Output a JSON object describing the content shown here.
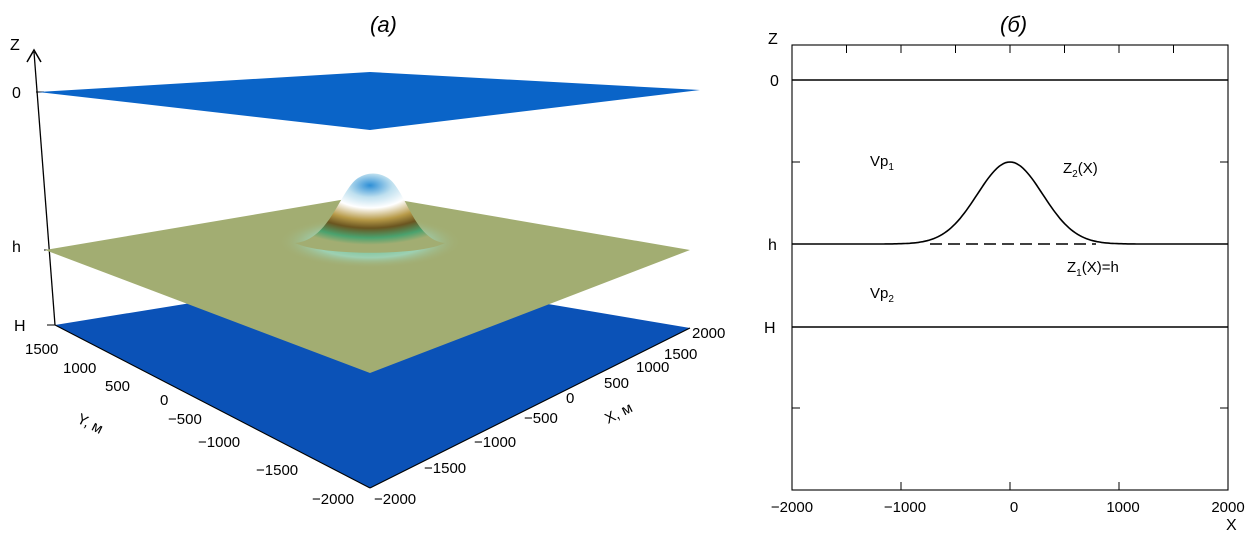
{
  "panel_a": {
    "label": "(а)",
    "z_axis_label": "Z",
    "level_labels": {
      "top": "0",
      "middle": "h",
      "bottom": "H"
    },
    "y_axis": {
      "label": "Y, м",
      "ticks": [
        "1500",
        "1000",
        "500",
        "0",
        "−500",
        "−1000",
        "−1500",
        "−2000"
      ]
    },
    "x_axis": {
      "label": "X, м",
      "ticks": [
        "2000",
        "1500",
        "1000",
        "500",
        "0",
        "−500",
        "−1000",
        "−1500",
        "−2000"
      ]
    },
    "colors": {
      "top_plane": "#0a64c8",
      "middle_plane": "#a2ad72",
      "bottom_plane": "#0b52b7"
    }
  },
  "panel_b": {
    "label": "(б)",
    "z_axis_label": "Z",
    "x_axis_label": "X",
    "z_levels": {
      "top": "0",
      "middle": "h",
      "bottom": "H"
    },
    "medium_labels": {
      "upper": {
        "base": "Vp",
        "sub": "1"
      },
      "lower": {
        "base": "Vp",
        "sub": "2"
      }
    },
    "curve_labels": {
      "z2": {
        "base": "Z",
        "sub": "2",
        "rest": "(X)"
      },
      "z1": {
        "base": "Z",
        "sub": "1",
        "rest": "(X)=h"
      }
    },
    "x_ticks": [
      "−2000",
      "−1000",
      "0",
      "1000",
      "2000"
    ]
  },
  "chart_data": {
    "type": "line",
    "x_range": [
      -2000,
      2000
    ],
    "xlabel": "X",
    "ylabel": "Z",
    "x_ticks": [
      -2000,
      -1000,
      0,
      1000,
      2000
    ],
    "curves": [
      {
        "name": "Z2(X)",
        "shape": "gaussian",
        "center_x": 0,
        "baseline_level": "h",
        "peak_height_fraction_of_h": 0.5,
        "width_sigma": 300
      },
      {
        "name": "Z1(X)=h",
        "shape": "constant",
        "level": "h",
        "dashed": true
      },
      {
        "name": "0",
        "shape": "constant",
        "level": "0"
      },
      {
        "name": "H",
        "shape": "constant",
        "level": "H"
      }
    ]
  }
}
